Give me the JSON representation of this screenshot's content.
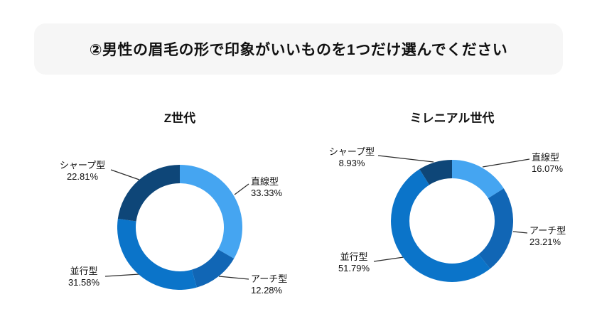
{
  "page": {
    "title": "②男性の眉毛の形で印象がいいものを1つだけ選んでください"
  },
  "chart_data": [
    {
      "type": "pie",
      "subtype": "donut",
      "title": "Z世代",
      "categories": [
        "直線型",
        "アーチ型",
        "並行型",
        "シャープ型"
      ],
      "values": [
        33.33,
        12.28,
        31.58,
        22.81
      ],
      "unit": "%",
      "colors": [
        "#45a5f1",
        "#1166b5",
        "#0b74c9",
        "#0e4678"
      ],
      "start_angle_deg": 0,
      "direction": "clockwise",
      "legend": "none",
      "labels_style": "callout-lines"
    },
    {
      "type": "pie",
      "subtype": "donut",
      "title": "ミレニアル世代",
      "categories": [
        "直線型",
        "アーチ型",
        "並行型",
        "シャープ型"
      ],
      "values": [
        16.07,
        23.21,
        51.79,
        8.93
      ],
      "unit": "%",
      "colors": [
        "#45a5f1",
        "#1166b5",
        "#0b74c9",
        "#0e4678"
      ],
      "start_angle_deg": 0,
      "direction": "clockwise",
      "legend": "none",
      "labels_style": "callout-lines"
    }
  ]
}
